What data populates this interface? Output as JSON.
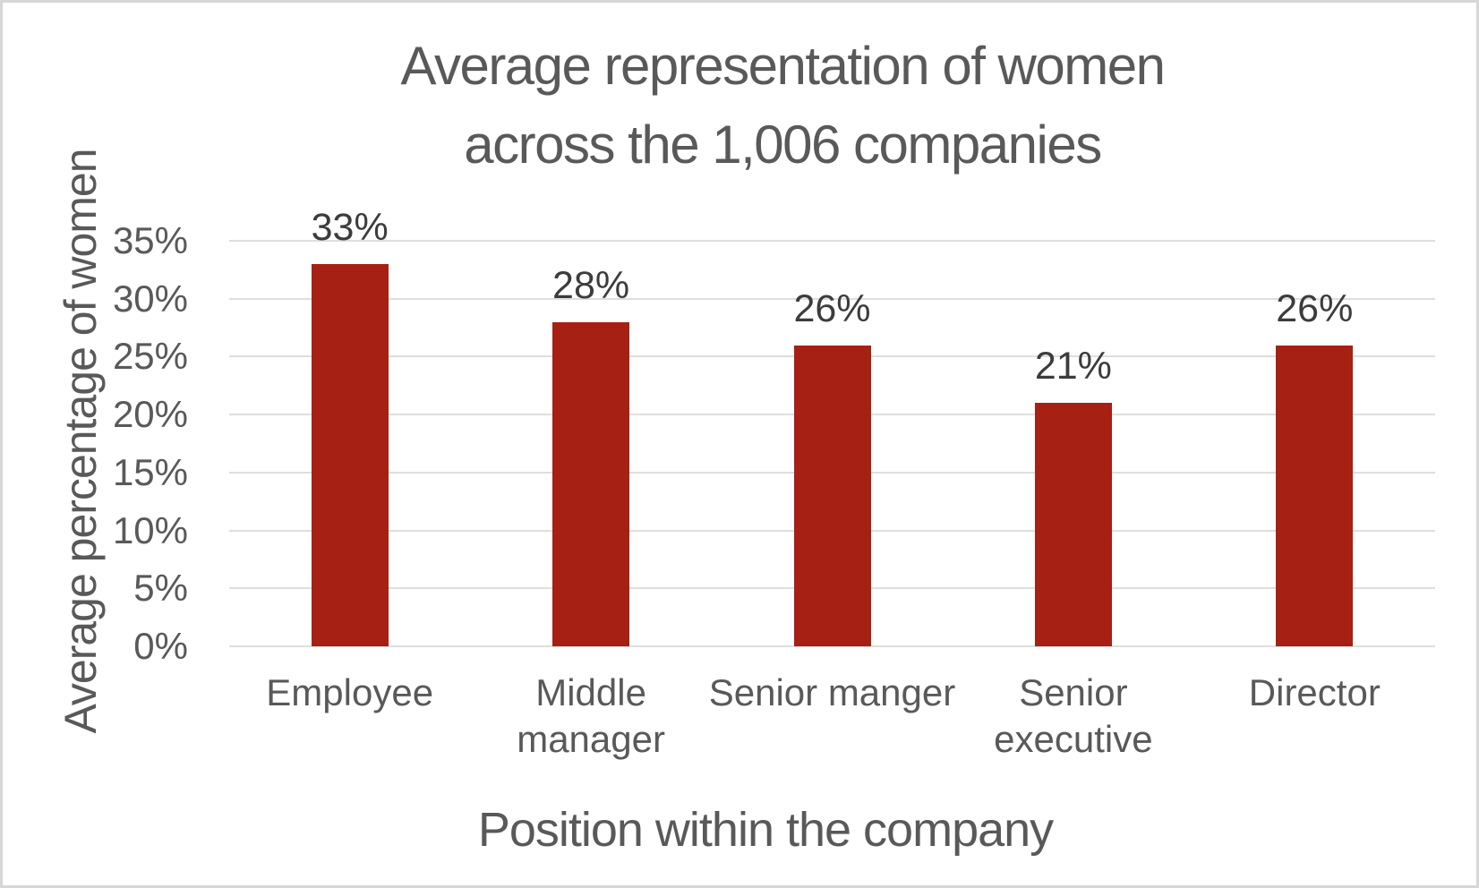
{
  "chart_data": {
    "type": "bar",
    "title": "Average representation of women across the 1,006 companies",
    "title_lines": [
      "Average representation of women",
      "across the 1,006 companies"
    ],
    "xlabel": "Position within the company",
    "ylabel": "Average percentage of women",
    "categories": [
      "Employee",
      "Middle manager",
      "Senior manger",
      "Senior executive",
      "Director"
    ],
    "category_label_lines": [
      [
        "Employee"
      ],
      [
        "Middle",
        "manager"
      ],
      [
        "Senior manger"
      ],
      [
        "Senior",
        "executive"
      ],
      [
        "Director"
      ]
    ],
    "values": [
      33,
      28,
      26,
      21,
      26
    ],
    "data_labels": [
      "33%",
      "28%",
      "26%",
      "21%",
      "26%"
    ],
    "ylim": [
      0,
      35
    ],
    "ytick_step": 5,
    "ytick_labels": [
      "0%",
      "5%",
      "10%",
      "15%",
      "20%",
      "25%",
      "30%",
      "35%"
    ],
    "grid": true,
    "legend_position": "none",
    "bar_color": "#a62014",
    "gridline_color": "#dedede",
    "axis_text_color": "#595959",
    "data_label_color": "#3c3c3c"
  }
}
